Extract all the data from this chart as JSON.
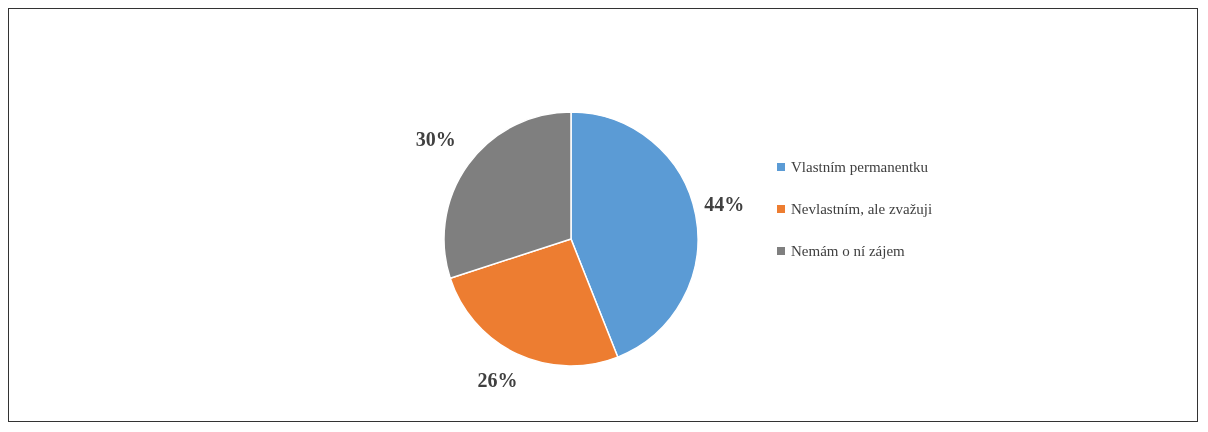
{
  "chart_data": {
    "type": "pie",
    "categories": [
      "Vlastním permanentku",
      "Nevlastním, ale zvažuji",
      "Nemám o ní zájem"
    ],
    "values": [
      44,
      26,
      30
    ],
    "colors": [
      "#5b9bd5",
      "#ed7d31",
      "#7f7f7f"
    ],
    "value_labels": [
      "44%",
      "26%",
      "30%"
    ],
    "legend": "right"
  }
}
